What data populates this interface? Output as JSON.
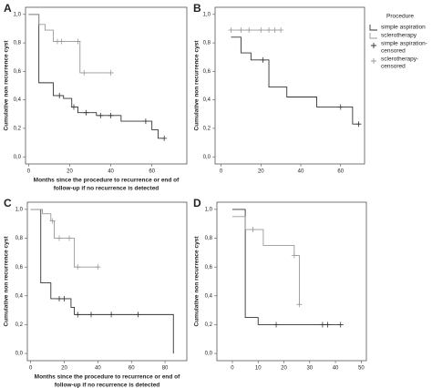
{
  "legend": {
    "title": "Procedure",
    "items": [
      {
        "lines": [
          "simple aspiration"
        ],
        "color": "#333333",
        "marker": "line"
      },
      {
        "lines": [
          "sclerotherapy"
        ],
        "color": "#999999",
        "marker": "line"
      },
      {
        "lines": [
          "simple aspiration-",
          "censored"
        ],
        "color": "#333333",
        "marker": "+"
      },
      {
        "lines": [
          "sclerotherapy-",
          "censored"
        ],
        "color": "#999999",
        "marker": "+"
      }
    ]
  },
  "chart_data": [
    {
      "type": "line",
      "label": "A",
      "ylabel": "Cumulative non recurrence cyst",
      "xlabel": [
        "Months since the procedure to recurrence or end of",
        "follow-up if no recurrence is detected"
      ],
      "xlim": [
        -1.5,
        77
      ],
      "xticks": [
        0,
        20,
        40,
        60
      ],
      "ylim": [
        -0.05,
        1.05
      ],
      "yticks": [
        {
          "value": 0,
          "label": "0,0"
        },
        {
          "value": 0.2,
          "label": "0,2"
        },
        {
          "value": 0.4,
          "label": "0,4"
        },
        {
          "value": 0.6,
          "label": "0,6"
        },
        {
          "value": 0.8,
          "label": "0,8"
        },
        {
          "value": 1,
          "label": "1,0"
        }
      ],
      "series": [
        {
          "color": "#333333",
          "drawstyle": "steps-post",
          "x": [
            0,
            5,
            12,
            17,
            21,
            24,
            33,
            45,
            60,
            63,
            66
          ],
          "values": [
            1,
            0.52,
            0.43,
            0.41,
            0.35,
            0.31,
            0.29,
            0.25,
            0.19,
            0.13,
            0.13
          ]
        },
        {
          "color": "#999999",
          "drawstyle": "steps-post",
          "x": [
            0,
            5,
            8,
            12,
            25,
            40
          ],
          "values": [
            1,
            0.93,
            0.89,
            0.81,
            0.59,
            0.59
          ]
        },
        {
          "color": "#333333",
          "marker": "+",
          "x": [
            15,
            22,
            28,
            35,
            40,
            57,
            66
          ],
          "values": [
            0.43,
            0.35,
            0.31,
            0.29,
            0.29,
            0.25,
            0.13
          ]
        },
        {
          "color": "#999999",
          "marker": "+",
          "x": [
            14,
            16,
            24,
            27,
            40
          ],
          "values": [
            0.81,
            0.81,
            0.81,
            0.59,
            0.59
          ]
        }
      ]
    },
    {
      "type": "line",
      "label": "B",
      "ylabel": "Cumulative non recurrence cyst",
      "xlim": [
        -3,
        72
      ],
      "xticks": [
        0,
        20,
        40,
        60
      ],
      "ylim": [
        -0.05,
        1.05
      ],
      "yticks": [
        {
          "value": 0,
          "label": "0,0"
        },
        {
          "value": 0.2,
          "label": "0,2"
        },
        {
          "value": 0.4,
          "label": "0,4"
        },
        {
          "value": 0.6,
          "label": "0,6"
        },
        {
          "value": 0.8,
          "label": "0,8"
        },
        {
          "value": 1,
          "label": "1,0"
        }
      ],
      "series": [
        {
          "color": "#333333",
          "drawstyle": "steps-post",
          "x": [
            5,
            10,
            15,
            24,
            33,
            48,
            66,
            70
          ],
          "values": [
            0.84,
            0.73,
            0.68,
            0.49,
            0.42,
            0.35,
            0.23,
            0.23
          ]
        },
        {
          "color": "#999999",
          "drawstyle": "steps-post",
          "x": [
            5,
            30
          ],
          "values": [
            0.89,
            0.89
          ]
        },
        {
          "color": "#333333",
          "marker": "+",
          "x": [
            21,
            60,
            69
          ],
          "values": [
            0.68,
            0.35,
            0.23
          ]
        },
        {
          "color": "#999999",
          "marker": "+",
          "x": [
            5,
            10,
            14,
            20,
            24,
            27,
            30
          ],
          "values": [
            0.89,
            0.89,
            0.89,
            0.89,
            0.89,
            0.89,
            0.89
          ]
        }
      ]
    },
    {
      "type": "line",
      "label": "C",
      "ylabel": "Cumulative non recurrence cyst",
      "xlabel": [
        "Months since the procedure to recurrence or end of",
        "follow-up if no recurrence is detected"
      ],
      "xlim": [
        -2,
        93
      ],
      "xticks": [
        0,
        20,
        40,
        60,
        80
      ],
      "ylim": [
        -0.05,
        1.05
      ],
      "yticks": [
        {
          "value": 0,
          "label": "0,0"
        },
        {
          "value": 0.2,
          "label": "0,2"
        },
        {
          "value": 0.4,
          "label": "0,4"
        },
        {
          "value": 0.6,
          "label": "0,6"
        },
        {
          "value": 0.8,
          "label": "0,8"
        },
        {
          "value": 1,
          "label": "1,0"
        }
      ],
      "series": [
        {
          "color": "#333333",
          "drawstyle": "steps-post",
          "x": [
            0,
            6,
            12,
            24,
            26,
            85
          ],
          "values": [
            1,
            0.49,
            0.38,
            0.32,
            0.27,
            0
          ]
        },
        {
          "color": "#999999",
          "drawstyle": "steps-post",
          "x": [
            0,
            7,
            12,
            14,
            26,
            40
          ],
          "values": [
            1,
            0.97,
            0.92,
            0.8,
            0.6,
            0.6
          ]
        },
        {
          "color": "#333333",
          "marker": "+",
          "x": [
            17,
            20,
            28,
            36,
            48,
            64
          ],
          "values": [
            0.38,
            0.38,
            0.27,
            0.27,
            0.27,
            0.27
          ]
        },
        {
          "color": "#999999",
          "marker": "+",
          "x": [
            13,
            17,
            23,
            28,
            40
          ],
          "values": [
            0.92,
            0.8,
            0.8,
            0.6,
            0.6
          ]
        }
      ]
    },
    {
      "type": "line",
      "label": "D",
      "ylabel": "Cumulative non recurrence cyst",
      "xlim": [
        -6,
        52
      ],
      "xticks": [
        0,
        10,
        20,
        30,
        40,
        50
      ],
      "ylim": [
        -0.05,
        1.05
      ],
      "yticks": [
        {
          "value": 0,
          "label": "0,0"
        },
        {
          "value": 0.2,
          "label": "0,2"
        },
        {
          "value": 0.4,
          "label": "0,4"
        },
        {
          "value": 0.6,
          "label": "0,6"
        },
        {
          "value": 0.8,
          "label": "0,8"
        },
        {
          "value": 1,
          "label": "1,0"
        }
      ],
      "series": [
        {
          "color": "#333333",
          "drawstyle": "steps-post",
          "x": [
            0,
            5,
            10,
            42
          ],
          "values": [
            1,
            0.25,
            0.2,
            0.2
          ]
        },
        {
          "color": "#999999",
          "drawstyle": "steps-post",
          "x": [
            0,
            5,
            12,
            24,
            26
          ],
          "values": [
            0.95,
            0.86,
            0.75,
            0.68,
            0.34
          ]
        },
        {
          "color": "#333333",
          "marker": "+",
          "x": [
            17,
            35,
            37,
            42
          ],
          "values": [
            0.2,
            0.2,
            0.2,
            0.2
          ]
        },
        {
          "color": "#999999",
          "marker": "+",
          "x": [
            8,
            24,
            26
          ],
          "values": [
            0.86,
            0.68,
            0.34
          ]
        }
      ]
    }
  ]
}
